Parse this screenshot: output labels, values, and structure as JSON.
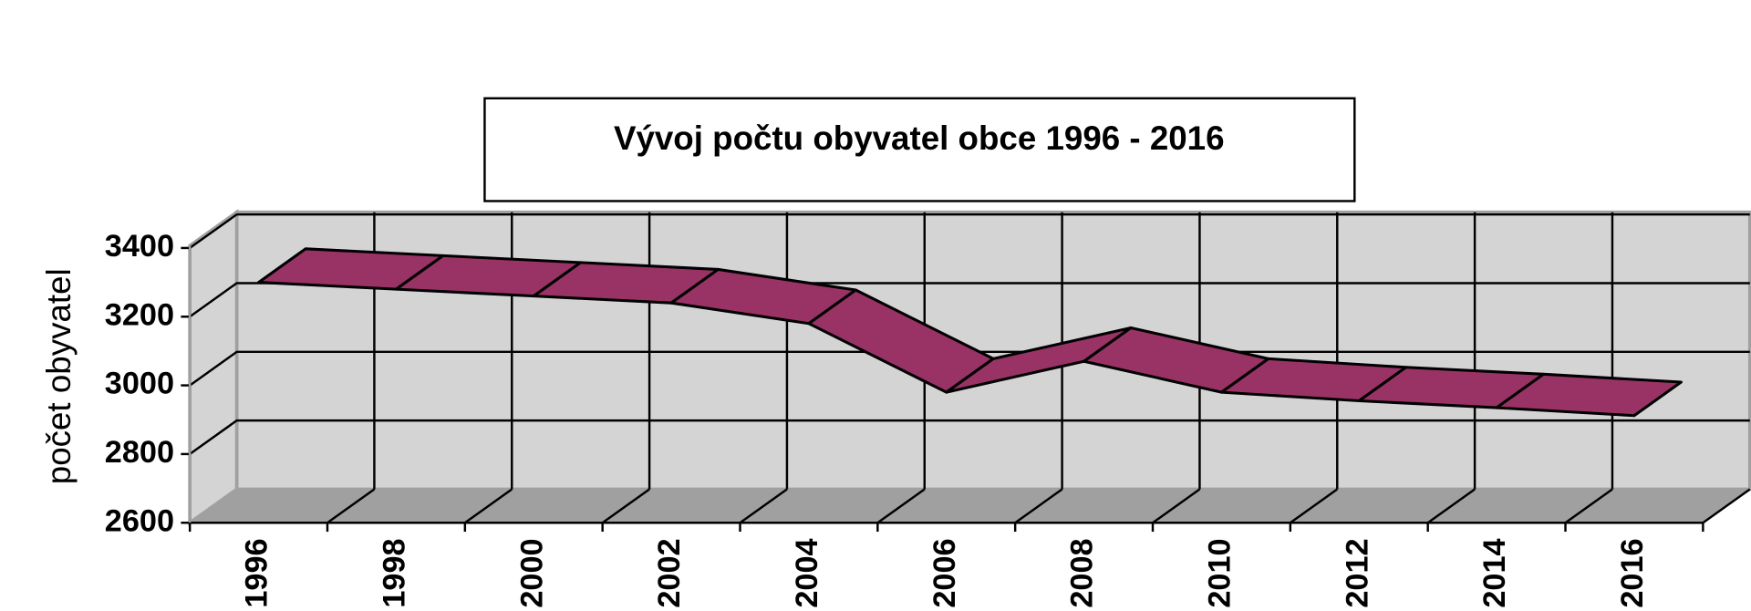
{
  "chart_data": {
    "type": "line3d",
    "title": "Vývoj počtu obyvatel obce 1996 - 2016",
    "y_label": "počet obyvatel",
    "categories": [
      "1996",
      "1998",
      "2000",
      "2002",
      "2004",
      "2006",
      "2008",
      "2010",
      "2012",
      "2014",
      "2016"
    ],
    "values": [
      3300,
      3280,
      3260,
      3240,
      3180,
      2980,
      3070,
      2980,
      2955,
      2935,
      2912
    ],
    "color": "#993366",
    "ylim": [
      2600,
      3400
    ],
    "yticks": [
      2600,
      2800,
      3000,
      3200,
      3400
    ],
    "grid": true
  }
}
